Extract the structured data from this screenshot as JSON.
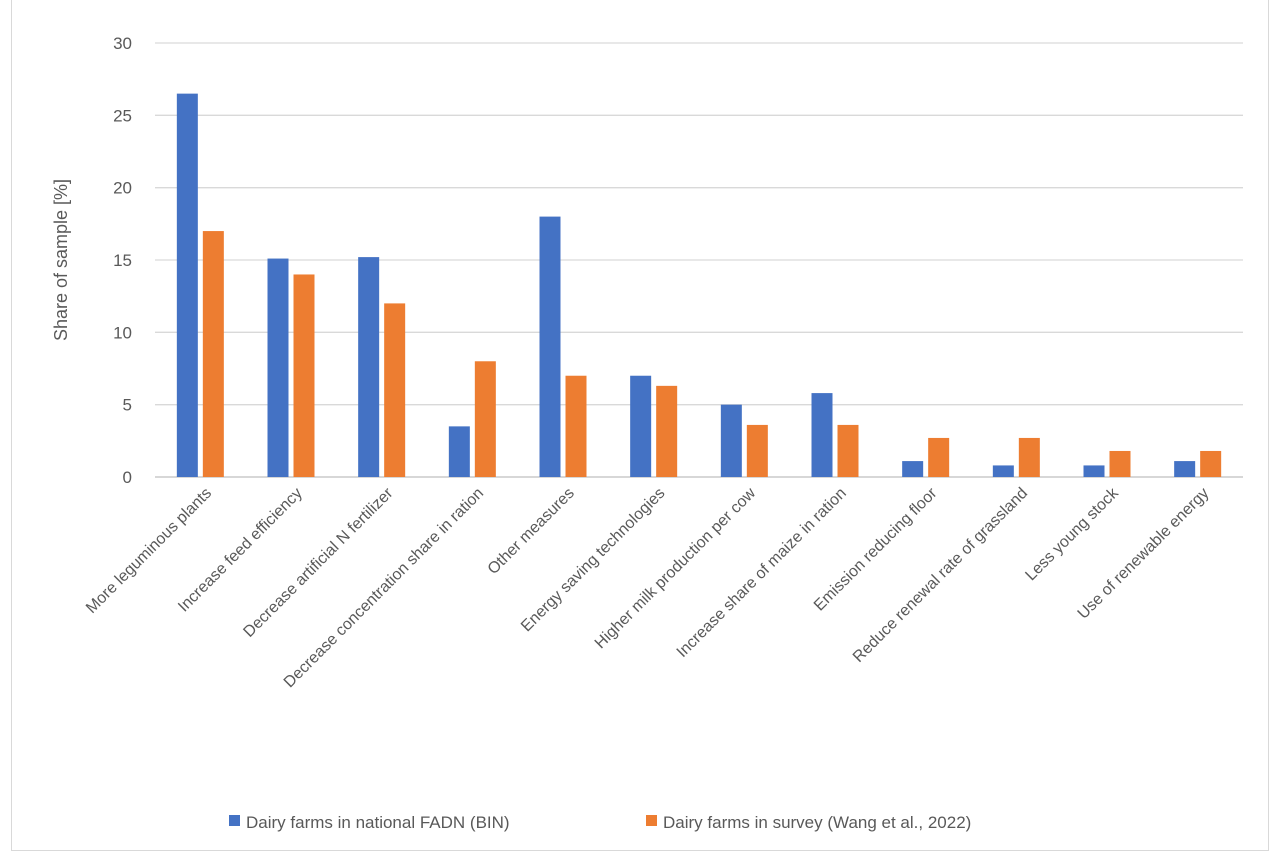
{
  "chart_data": {
    "type": "bar",
    "title": "",
    "xlabel": "",
    "ylabel": "Share of sample [%]",
    "ylim": [
      0,
      30
    ],
    "yticks": [
      0,
      5,
      10,
      15,
      20,
      25,
      30
    ],
    "grid": true,
    "legend_position": "bottom",
    "categories": [
      "More leguminous plants",
      "Increase feed efficiency",
      "Decrease artificial N fertilizer",
      "Decrease concentration share in ration",
      "Other measures",
      "Energy saving technologies",
      "Higher milk production per cow",
      "Increase share of maize in ration",
      "Emission reducing floor",
      "Reduce renewal rate of grassland",
      "Less young stock",
      "Use of renewable energy"
    ],
    "series": [
      {
        "name": "Dairy farms in national FADN (BIN)",
        "color": "#4472C4",
        "values": [
          26.5,
          15.1,
          15.2,
          3.5,
          18.0,
          7.0,
          5.0,
          5.8,
          1.1,
          0.8,
          0.8,
          1.1
        ]
      },
      {
        "name": "Dairy farms in survey (Wang et al., 2022)",
        "color": "#ED7D31",
        "values": [
          17.0,
          14.0,
          12.0,
          8.0,
          7.0,
          6.3,
          3.6,
          3.6,
          2.7,
          2.7,
          1.8,
          1.8
        ]
      }
    ]
  }
}
